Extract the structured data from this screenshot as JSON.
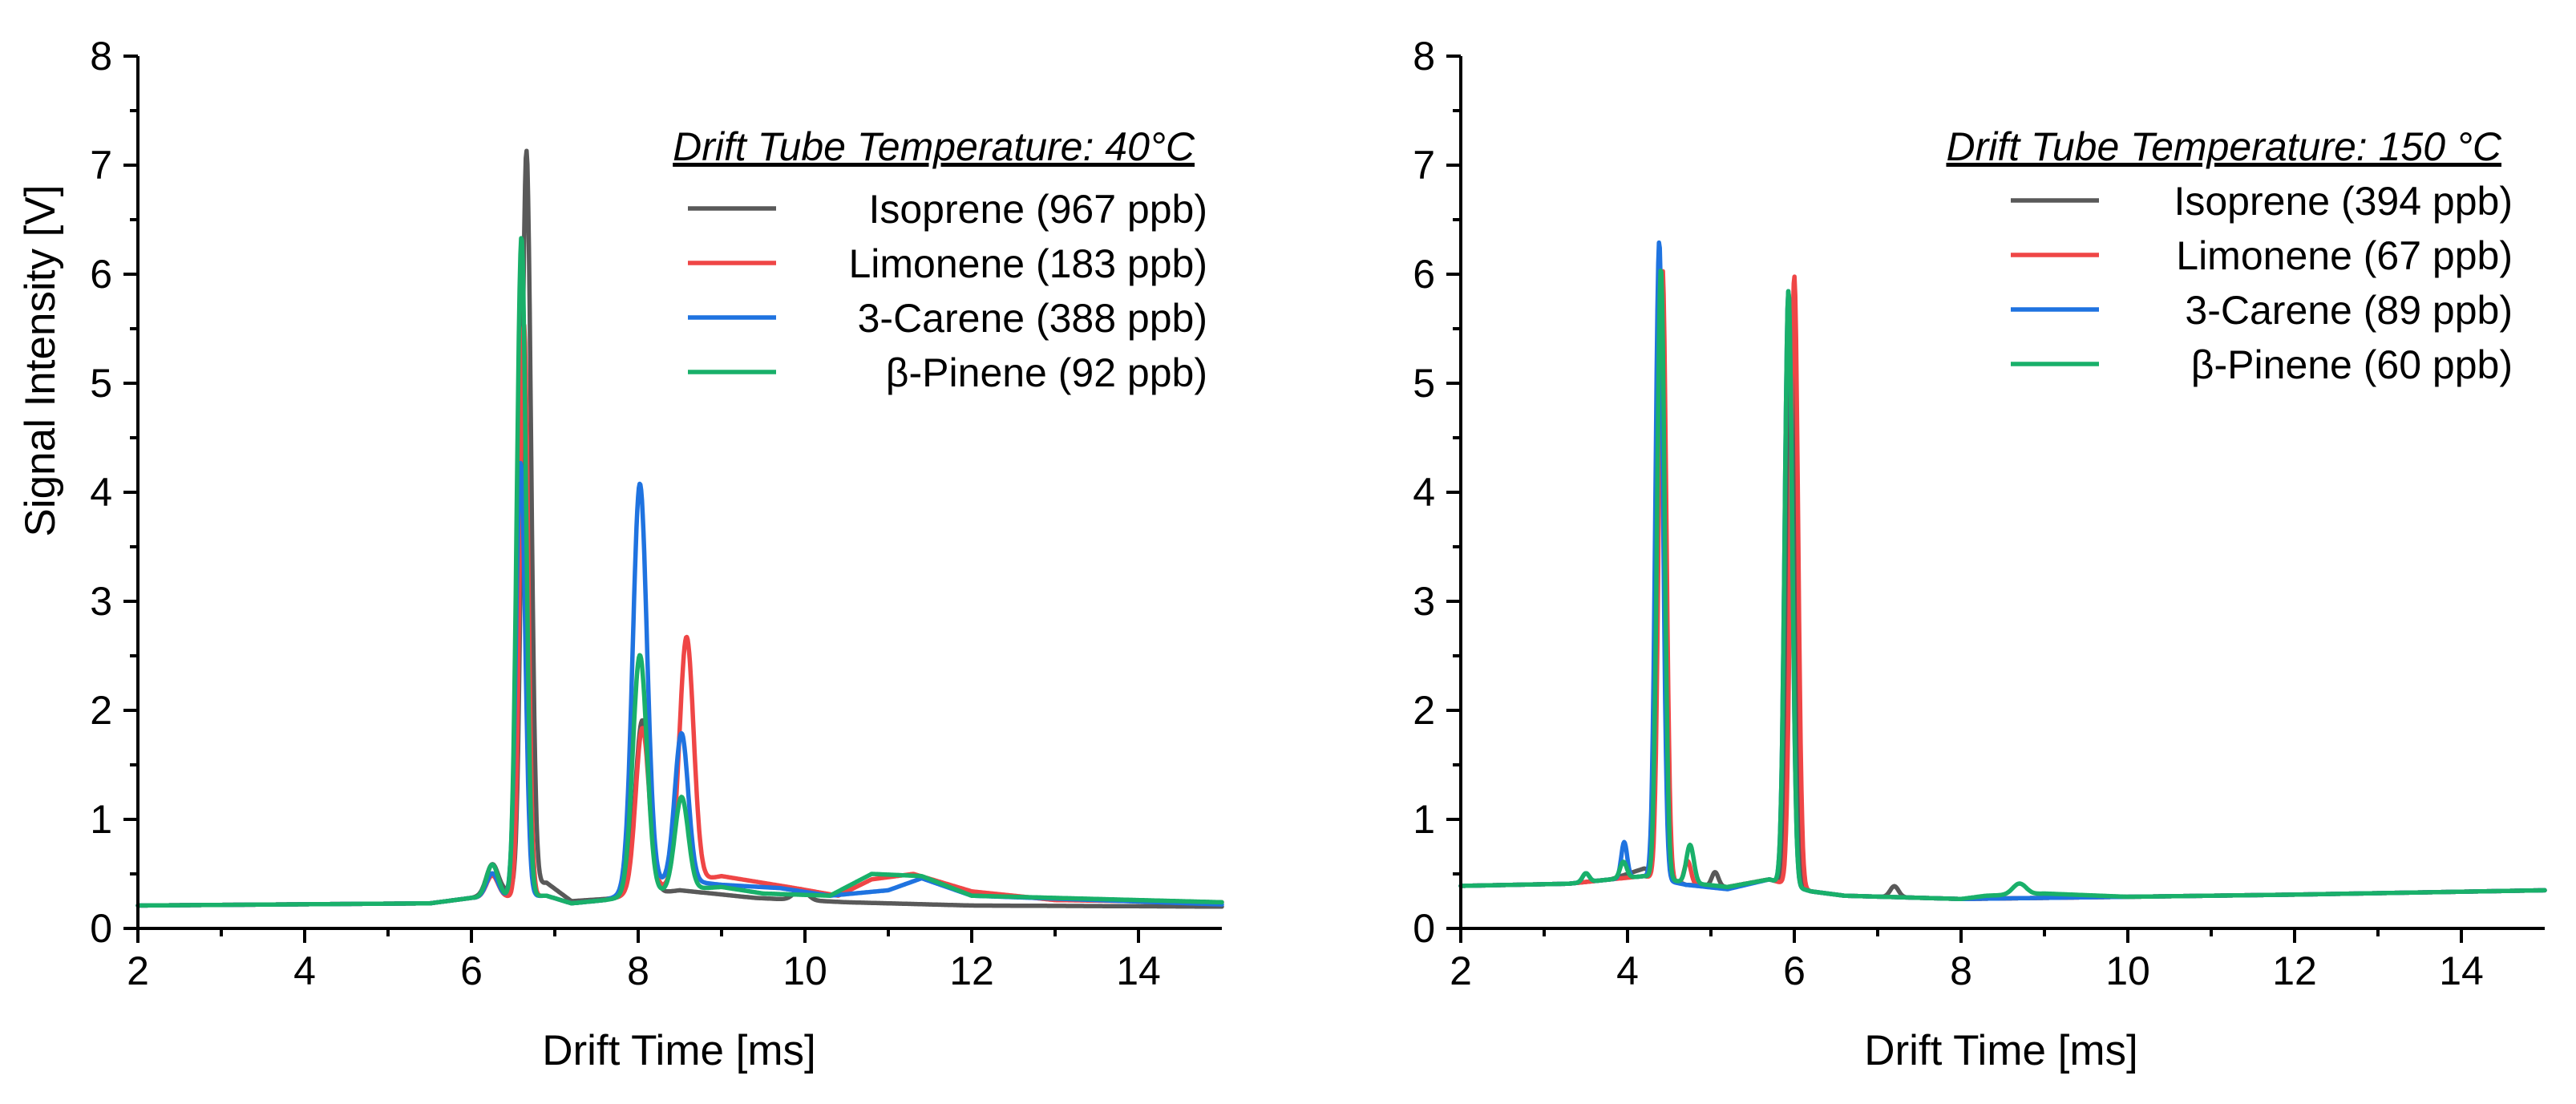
{
  "colors": {
    "isoprene": "#595959",
    "limonene": "#ef4646",
    "carene": "#1f73e0",
    "pinene": "#19b06a"
  },
  "chart_data": [
    {
      "id": "left",
      "type": "line",
      "title": "Drift Tube Temperature: 40°C",
      "xlabel": "Drift Time [ms]",
      "ylabel": "Signal Intensity [V]",
      "xlim": [
        2,
        15
      ],
      "ylim": [
        0,
        8
      ],
      "xticks": [
        2,
        4,
        6,
        8,
        10,
        12,
        14
      ],
      "xtick_labels": [
        "2",
        "4",
        "6",
        "8",
        "10",
        "12",
        "14"
      ],
      "yticks": [
        0,
        1,
        2,
        3,
        4,
        5,
        6,
        7,
        8
      ],
      "ytick_labels": [
        "0",
        "1",
        "2",
        "3",
        "4",
        "5",
        "6",
        "7",
        "8"
      ],
      "grid": false,
      "legend_position": "top-right",
      "series": [
        {
          "name": "Isoprene (967 ppb)",
          "color_key": "isoprene",
          "baseline": [
            [
              2,
              0.21
            ],
            [
              5.5,
              0.23
            ],
            [
              6.0,
              0.28
            ],
            [
              6.9,
              0.42
            ],
            [
              7.2,
              0.25
            ],
            [
              7.6,
              0.27
            ],
            [
              8.5,
              0.35
            ],
            [
              9.4,
              0.28
            ],
            [
              10.5,
              0.24
            ],
            [
              12.0,
              0.21
            ],
            [
              15,
              0.2
            ]
          ],
          "peaks": [
            [
              6.25,
              0.27,
              0.07
            ],
            [
              6.66,
              6.75,
              0.055
            ],
            [
              8.05,
              1.6,
              0.085
            ],
            [
              9.95,
              0.1,
              0.08
            ]
          ]
        },
        {
          "name": "Limonene (183 ppb)",
          "color_key": "limonene",
          "baseline": [
            [
              2,
              0.21
            ],
            [
              5.5,
              0.23
            ],
            [
              6.0,
              0.28
            ],
            [
              6.9,
              0.3
            ],
            [
              7.2,
              0.23
            ],
            [
              7.6,
              0.26
            ],
            [
              8.4,
              0.4
            ],
            [
              9.0,
              0.48
            ],
            [
              9.8,
              0.38
            ],
            [
              10.4,
              0.3
            ],
            [
              10.8,
              0.45
            ],
            [
              11.3,
              0.5
            ],
            [
              12.0,
              0.34
            ],
            [
              13.0,
              0.26
            ],
            [
              15,
              0.24
            ]
          ],
          "peaks": [
            [
              6.25,
              0.2,
              0.07
            ],
            [
              6.63,
              5.25,
              0.05
            ],
            [
              8.05,
              1.5,
              0.08
            ],
            [
              8.58,
              2.25,
              0.085
            ]
          ]
        },
        {
          "name": "3-Carene (388 ppb)",
          "color_key": "carene",
          "baseline": [
            [
              2,
              0.21
            ],
            [
              5.5,
              0.23
            ],
            [
              6.0,
              0.28
            ],
            [
              6.9,
              0.3
            ],
            [
              7.2,
              0.23
            ],
            [
              7.6,
              0.26
            ],
            [
              8.4,
              0.45
            ],
            [
              9.0,
              0.4
            ],
            [
              9.7,
              0.37
            ],
            [
              10.3,
              0.3
            ],
            [
              11.0,
              0.35
            ],
            [
              11.4,
              0.46
            ],
            [
              12.0,
              0.3
            ],
            [
              15,
              0.22
            ]
          ],
          "peaks": [
            [
              6.25,
              0.22,
              0.07
            ],
            [
              6.59,
              3.98,
              0.055
            ],
            [
              8.02,
              3.72,
              0.085
            ],
            [
              8.52,
              1.35,
              0.08
            ]
          ]
        },
        {
          "name": "β-Pinene (92 ppb)",
          "color_key": "pinene",
          "baseline": [
            [
              2,
              0.21
            ],
            [
              5.5,
              0.23
            ],
            [
              6.0,
              0.28
            ],
            [
              6.9,
              0.3
            ],
            [
              7.2,
              0.23
            ],
            [
              7.6,
              0.26
            ],
            [
              8.4,
              0.35
            ],
            [
              9.0,
              0.38
            ],
            [
              9.5,
              0.32
            ],
            [
              10.3,
              0.3
            ],
            [
              10.8,
              0.5
            ],
            [
              11.4,
              0.48
            ],
            [
              12.0,
              0.3
            ],
            [
              15,
              0.24
            ]
          ],
          "peaks": [
            [
              6.25,
              0.3,
              0.07
            ],
            [
              6.6,
              6.05,
              0.055
            ],
            [
              8.02,
              2.2,
              0.085
            ],
            [
              8.52,
              0.85,
              0.08
            ]
          ]
        }
      ]
    },
    {
      "id": "right",
      "type": "line",
      "title": "Drift Tube Temperature: 150 °C",
      "xlabel": "Drift Time [ms]",
      "ylabel": "",
      "xlim": [
        2,
        15
      ],
      "ylim": [
        0,
        8
      ],
      "xticks": [
        2,
        4,
        6,
        8,
        10,
        12,
        14
      ],
      "xtick_labels": [
        "2",
        "4",
        "6",
        "8",
        "10",
        "12",
        "14"
      ],
      "yticks": [
        0,
        1,
        2,
        3,
        4,
        5,
        6,
        7,
        8
      ],
      "ytick_labels": [
        "0",
        "1",
        "2",
        "3",
        "4",
        "5",
        "6",
        "7",
        "8"
      ],
      "grid": false,
      "legend_position": "top-right",
      "series": [
        {
          "name": "Isoprene (394 ppb)",
          "color_key": "isoprene",
          "baseline": [
            [
              2,
              0.39
            ],
            [
              3.3,
              0.41
            ],
            [
              3.8,
              0.45
            ],
            [
              4.2,
              0.55
            ],
            [
              4.7,
              0.4
            ],
            [
              5.2,
              0.38
            ],
            [
              5.7,
              0.45
            ],
            [
              6.2,
              0.34
            ],
            [
              6.6,
              0.3
            ],
            [
              8.0,
              0.27
            ],
            [
              10,
              0.29
            ],
            [
              12,
              0.31
            ],
            [
              15,
              0.35
            ]
          ],
          "peaks": [
            [
              4.4,
              4.3,
              0.045
            ],
            [
              5.05,
              0.13,
              0.04
            ],
            [
              5.96,
              5.3,
              0.045
            ],
            [
              7.2,
              0.1,
              0.05
            ]
          ]
        },
        {
          "name": "Limonene (67 ppb)",
          "color_key": "limonene",
          "baseline": [
            [
              2,
              0.39
            ],
            [
              3.3,
              0.41
            ],
            [
              3.8,
              0.45
            ],
            [
              4.2,
              0.48
            ],
            [
              4.7,
              0.4
            ],
            [
              5.2,
              0.38
            ],
            [
              5.7,
              0.45
            ],
            [
              6.2,
              0.34
            ],
            [
              6.6,
              0.3
            ],
            [
              8.0,
              0.27
            ],
            [
              10,
              0.29
            ],
            [
              12,
              0.31
            ],
            [
              15,
              0.35
            ]
          ],
          "peaks": [
            [
              4.42,
              5.6,
              0.045
            ],
            [
              4.72,
              0.22,
              0.04
            ],
            [
              6.0,
              5.6,
              0.045
            ]
          ]
        },
        {
          "name": "3-Carene (89 ppb)",
          "color_key": "carene",
          "baseline": [
            [
              2,
              0.39
            ],
            [
              3.3,
              0.41
            ],
            [
              3.8,
              0.45
            ],
            [
              4.2,
              0.48
            ],
            [
              4.7,
              0.4
            ],
            [
              5.2,
              0.36
            ],
            [
              5.7,
              0.45
            ],
            [
              6.2,
              0.34
            ],
            [
              6.6,
              0.3
            ],
            [
              8.0,
              0.27
            ],
            [
              10,
              0.29
            ],
            [
              12,
              0.31
            ],
            [
              15,
              0.35
            ]
          ],
          "peaks": [
            [
              3.5,
              0.08,
              0.04
            ],
            [
              3.96,
              0.33,
              0.035
            ],
            [
              4.38,
              5.85,
              0.045
            ],
            [
              5.93,
              5.45,
              0.045
            ]
          ]
        },
        {
          "name": "β-Pinene (60 ppb)",
          "color_key": "pinene",
          "baseline": [
            [
              2,
              0.39
            ],
            [
              3.3,
              0.41
            ],
            [
              3.8,
              0.45
            ],
            [
              4.2,
              0.48
            ],
            [
              4.7,
              0.42
            ],
            [
              5.2,
              0.38
            ],
            [
              5.7,
              0.45
            ],
            [
              6.2,
              0.34
            ],
            [
              6.6,
              0.3
            ],
            [
              8.0,
              0.27
            ],
            [
              8.3,
              0.3
            ],
            [
              9.0,
              0.32
            ],
            [
              10,
              0.29
            ],
            [
              12,
              0.31
            ],
            [
              15,
              0.35
            ]
          ],
          "peaks": [
            [
              3.5,
              0.08,
              0.04
            ],
            [
              3.95,
              0.15,
              0.04
            ],
            [
              4.4,
              5.6,
              0.045
            ],
            [
              4.75,
              0.35,
              0.045
            ],
            [
              5.93,
              5.45,
              0.045
            ],
            [
              8.7,
              0.1,
              0.08
            ]
          ]
        }
      ]
    }
  ]
}
